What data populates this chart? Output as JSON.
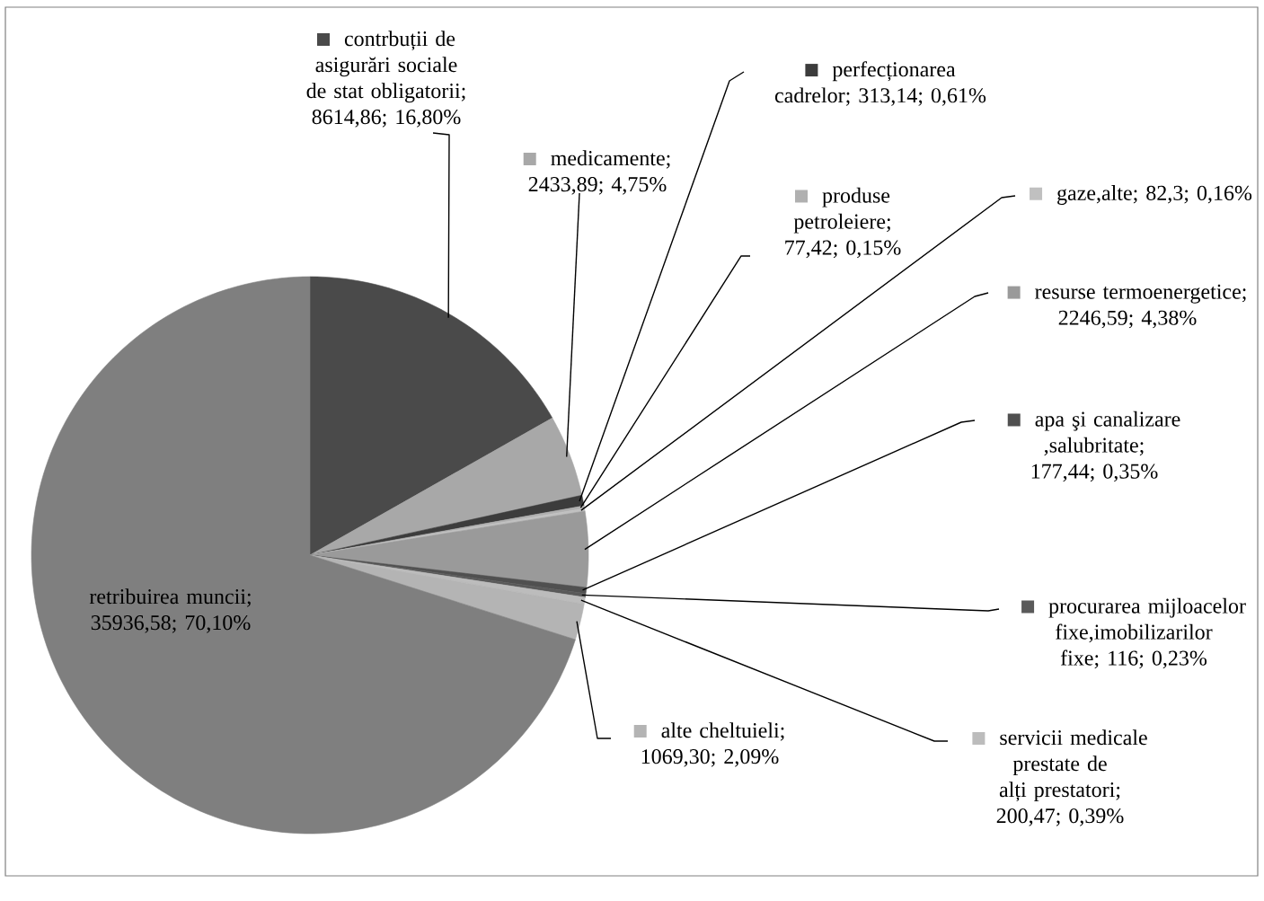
{
  "chart_data": {
    "type": "pie",
    "categories": [
      "contrbuții de asigurări sociale de stat obligatorii",
      "medicamente",
      "perfecționarea cadrelor",
      "produse petroleiere",
      "gaze,alte",
      "resurse termoenergetice",
      "apa şi canalizare ,salubritate",
      "procurarea mijloacelor fixe,imobilizarilor fixe",
      "servicii medicale prestate de alți prestatori",
      "alte cheltuieli",
      "retribuirea muncii"
    ],
    "values": [
      8614.86,
      2433.89,
      313.14,
      77.42,
      82.3,
      2246.59,
      177.44,
      116,
      200.47,
      1069.3,
      35936.58
    ],
    "value_labels": [
      "; 8614,86; 16,80%",
      "; 2433,89; 4,75%",
      "; 313,14; 0,61%",
      "; 77,42; 0,15%",
      "; 82,3; 0,16%",
      "; 2246,59; 4,38%",
      "; 177,44; 0,35%",
      "; 116; 0,23%",
      "; 200,47; 0,39%",
      "; 1069,30; 2,09%",
      "; 35936,58; 70,10%"
    ],
    "legend": "right",
    "colors": [
      "#4a4a4a",
      "#a8a8a8",
      "#3c3c3c",
      "#b0b0b0",
      "#c0c0c0",
      "#9a9a9a",
      "#505050",
      "#5a5a5a",
      "#bcbcbc",
      "#b4b4b4",
      "#7f7f7f"
    ]
  }
}
